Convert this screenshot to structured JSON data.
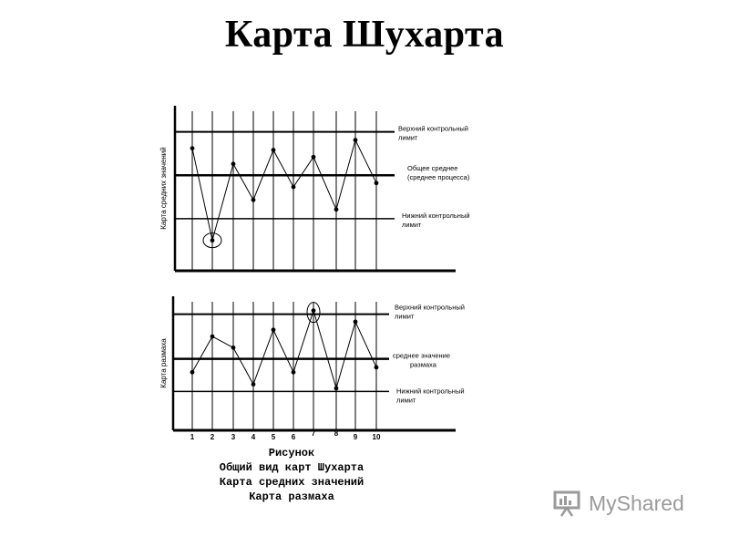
{
  "title": "Карта Шухарта",
  "top_chart": {
    "ylabel": "Карта средних значений",
    "ucl_label": [
      "Верхний контрольный",
      "лимит"
    ],
    "cl_label": [
      "Общее среднее",
      "(среднее процесса)"
    ],
    "lcl_label": [
      "Нижний контрольный",
      "лимит"
    ]
  },
  "bottom_chart": {
    "ylabel": "Карта размаха",
    "ucl_label": [
      "Верхний контрольный",
      "лимит"
    ],
    "cl_label": [
      "среднее значение",
      "размаха"
    ],
    "lcl_label": [
      "Нижний контрольный",
      "лимит"
    ]
  },
  "x_ticks": [
    "1",
    "2",
    "3",
    "4",
    "5",
    "6",
    "7",
    "8",
    "9",
    "10"
  ],
  "caption": [
    "Рисунок",
    "Общий вид карт Шухарта",
    "Карта средних значений",
    "Карта размаха"
  ],
  "logo": {
    "text": "MyShared",
    "icon": "presentation-board-icon"
  },
  "chart_data": [
    {
      "type": "line",
      "ylabel": "Карта средних значений",
      "x": [
        1,
        2,
        3,
        4,
        5,
        6,
        7,
        8,
        9,
        10
      ],
      "y": [
        0.62,
        -1.5,
        0.26,
        -0.57,
        0.58,
        -0.27,
        0.42,
        -0.79,
        0.81,
        -0.18
      ],
      "control_lines": {
        "upper": 1,
        "center": 0,
        "lower": -1
      },
      "ylim": [
        -2.2,
        1.6
      ],
      "highlighted_points": [
        2
      ]
    },
    {
      "type": "line",
      "ylabel": "Карта размаха",
      "x": [
        1,
        2,
        3,
        4,
        5,
        6,
        7,
        8,
        9,
        10
      ],
      "y": [
        -0.3,
        0.5,
        0.25,
        -0.57,
        0.65,
        -0.3,
        1.08,
        -0.66,
        0.83,
        -0.19
      ],
      "control_lines": {
        "upper": 1,
        "center": 0,
        "lower": -0.73
      },
      "ylim": [
        -1.6,
        1.4
      ],
      "highlighted_points": [
        7
      ]
    }
  ]
}
